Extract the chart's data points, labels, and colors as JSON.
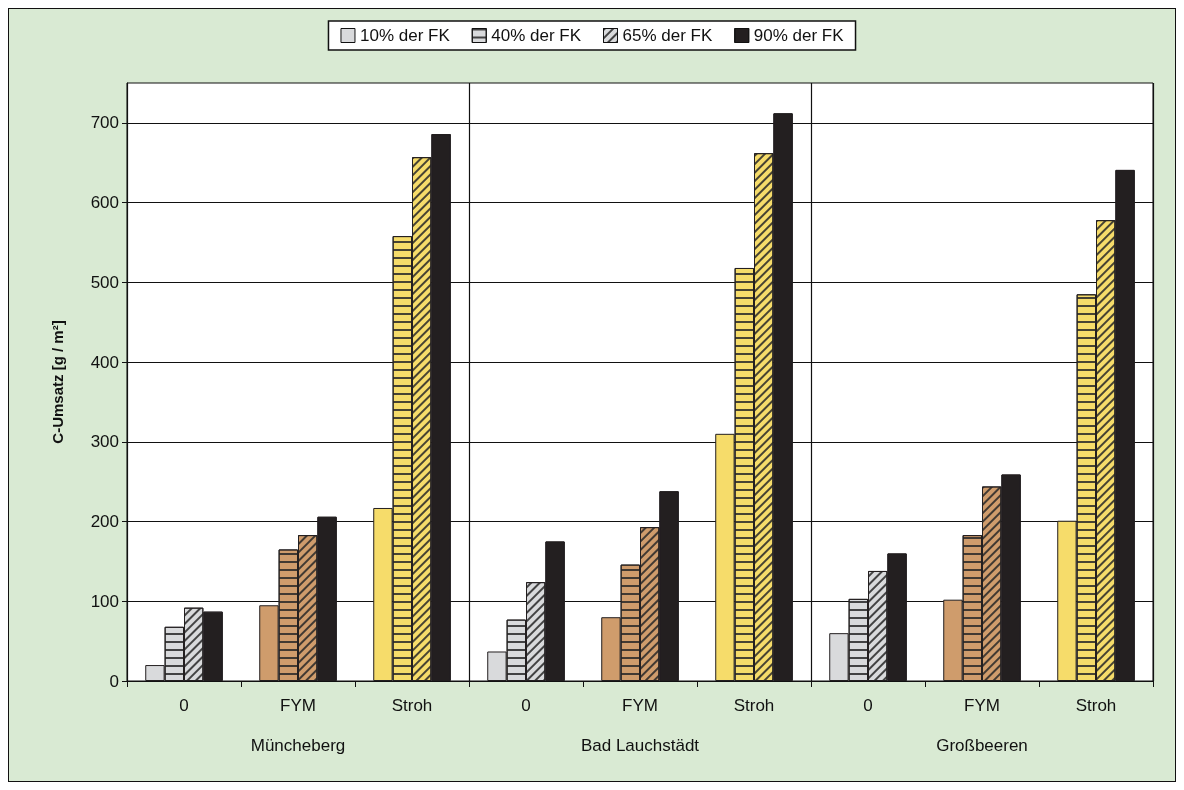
{
  "chart_data": {
    "type": "bar",
    "ylabel": "C-Umsatz [g / m²]",
    "categories": [
      "0",
      "FYM",
      "Stroh",
      "0",
      "FYM",
      "Stroh",
      "0",
      "FYM",
      "Stroh"
    ],
    "annotations": [
      "Müncheberg",
      "Bad Lauchstädt",
      "Großbeeren"
    ],
    "series": [
      {
        "name": "10% der FK",
        "colors": [
          "#d9dadc",
          "#cf9c6c",
          "#f6dc6a",
          "#d9dadc",
          "#cf9c6c",
          "#f6dc6a",
          "#d9dadc",
          "#cf9c6c",
          "#f6dc6a"
        ],
        "values": [
          20,
          95,
          217,
          37,
          80,
          310,
          60,
          102,
          201
        ]
      },
      {
        "name": "40% der FK",
        "colors": [
          "#d9dadc",
          "#cf9c6c",
          "#f6dc6a",
          "#d9dadc",
          "#cf9c6c",
          "#f6dc6a",
          "#d9dadc",
          "#cf9c6c",
          "#f6dc6a"
        ],
        "values": [
          68,
          165,
          558,
          77,
          146,
          518,
          103,
          183,
          485
        ]
      },
      {
        "name": "65% der FK",
        "colors": [
          "#d9dadc",
          "#cf9c6c",
          "#f6dc6a",
          "#d9dadc",
          "#cf9c6c",
          "#f6dc6a",
          "#d9dadc",
          "#cf9c6c",
          "#f6dc6a"
        ],
        "values": [
          92,
          183,
          657,
          124,
          193,
          662,
          138,
          244,
          578
        ]
      },
      {
        "name": "90% der FK",
        "color": "#231f20",
        "values": [
          87,
          206,
          686,
          175,
          238,
          712,
          160,
          259,
          641
        ]
      }
    ],
    "ylim": [
      0,
      750
    ],
    "yticks": [
      0,
      100,
      200,
      300,
      400,
      500,
      600,
      700
    ],
    "grid": "y",
    "legend": "top"
  }
}
